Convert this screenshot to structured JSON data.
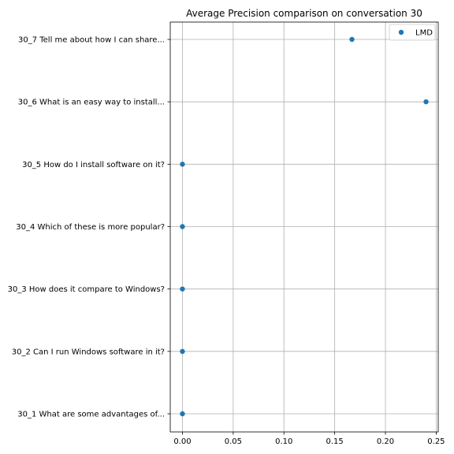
{
  "chart_data": {
    "type": "scatter",
    "title": "Average Precision comparison on conversation 30",
    "xlabel": "",
    "ylabel": "",
    "xlim": [
      -0.012,
      0.252
    ],
    "xticks": [
      0.0,
      0.05,
      0.1,
      0.15,
      0.2,
      0.25
    ],
    "xtick_labels": [
      "0.00",
      "0.05",
      "0.10",
      "0.15",
      "0.20",
      "0.25"
    ],
    "categories": [
      "30_1 What are some advantages of...",
      "30_2 Can I run Windows software in it?",
      "30_3 How does it compare to Windows?",
      "30_4 Which of these is more popular?",
      "30_5 How do I install software on it?",
      "30_6 What is an easy way to install...",
      "30_7 Tell me about how I can share..."
    ],
    "series": [
      {
        "name": "LMD",
        "color": "#1f77b4",
        "values": [
          0.0,
          0.0,
          0.0,
          0.0,
          0.0,
          0.24,
          0.167
        ]
      }
    ],
    "grid": true,
    "legend_position": "top-right"
  }
}
